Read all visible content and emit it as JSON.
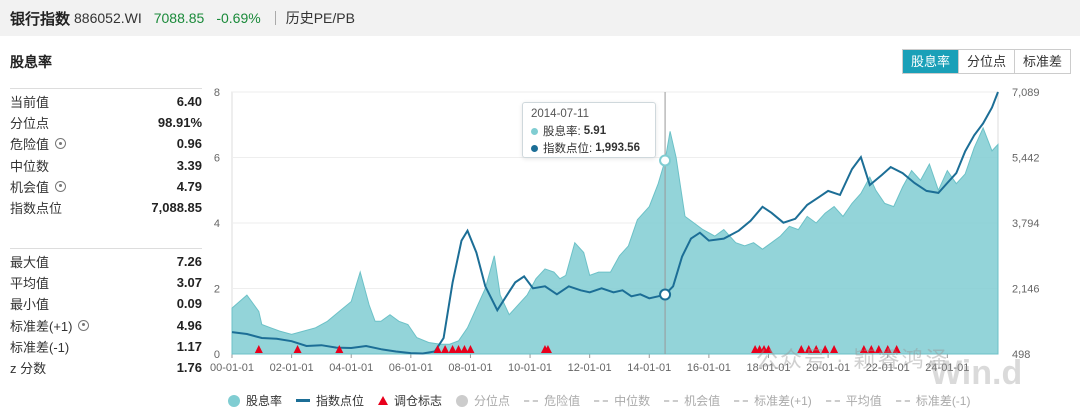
{
  "header": {
    "name": "银行指数",
    "code": "886052.WI",
    "price": "7088.85",
    "change": "-0.69%",
    "history_label": "历史PE/PB"
  },
  "section_title": "股息率",
  "tabs": [
    {
      "label": "股息率",
      "active": true
    },
    {
      "label": "分位点",
      "active": false
    },
    {
      "label": "标准差",
      "active": false
    }
  ],
  "stats_top": [
    {
      "label": "当前值",
      "value": "6.40",
      "gear": false
    },
    {
      "label": "分位点",
      "value": "98.91%",
      "gear": false
    },
    {
      "label": "危险值",
      "value": "0.96",
      "gear": true
    },
    {
      "label": "中位数",
      "value": "3.39",
      "gear": false
    },
    {
      "label": "机会值",
      "value": "4.79",
      "gear": true
    },
    {
      "label": "指数点位",
      "value": "7,088.85",
      "gear": false
    }
  ],
  "stats_bottom": [
    {
      "label": "最大值",
      "value": "7.26",
      "gear": false
    },
    {
      "label": "平均值",
      "value": "3.07",
      "gear": false
    },
    {
      "label": "最小值",
      "value": "0.09",
      "gear": false
    },
    {
      "label": "标准差(+1)",
      "value": "4.96",
      "gear": true
    },
    {
      "label": "标准差(-1)",
      "value": "1.17",
      "gear": false
    },
    {
      "label": "z 分数",
      "value": "1.76",
      "gear": false
    }
  ],
  "tooltip": {
    "date": "2014-07-11",
    "dividend_label": "股息率:",
    "dividend_value": "5.91",
    "index_label": "指数点位:",
    "index_value": "1,993.56"
  },
  "legend": [
    {
      "label": "股息率",
      "kind": "dot",
      "color": "#80cdd2",
      "active": true
    },
    {
      "label": "指数点位",
      "kind": "line",
      "color": "#1c6e96",
      "active": true
    },
    {
      "label": "调仓标志",
      "kind": "tri",
      "color": "#e8001c",
      "active": true
    },
    {
      "label": "分位点",
      "kind": "dot",
      "color": "#cccccc",
      "active": false
    },
    {
      "label": "危险值",
      "kind": "dash",
      "color": "#cccccc",
      "active": false
    },
    {
      "label": "中位数",
      "kind": "dash",
      "color": "#cccccc",
      "active": false
    },
    {
      "label": "机会值",
      "kind": "dash",
      "color": "#cccccc",
      "active": false
    },
    {
      "label": "标准差(+1)",
      "kind": "dash",
      "color": "#cccccc",
      "active": false
    },
    {
      "label": "平均值",
      "kind": "dash",
      "color": "#cccccc",
      "active": false
    },
    {
      "label": "标准差(-1)",
      "kind": "dash",
      "color": "#cccccc",
      "active": false
    }
  ],
  "watermark": "公众号 · 颖睿鸿泽",
  "watermark2": "Win.d",
  "colors": {
    "area": "#80cdd2",
    "index_line": "#1c6e96",
    "marker": "#e8001c",
    "tab_active": "#1aa0b8",
    "positive": "#1a8a3a"
  },
  "chart_data": {
    "type": "area",
    "x_tick_labels": [
      "00-01-01",
      "02-01-01",
      "04-01-01",
      "06-01-01",
      "08-01-01",
      "10-01-01",
      "12-01-01",
      "14-01-01",
      "16-01-01",
      "18-01-01",
      "20-01-01",
      "22-01-01",
      "24-01-01"
    ],
    "x_tick_years": [
      2000,
      2002,
      2004,
      2006,
      2008,
      2010,
      2012,
      2014,
      2016,
      2018,
      2020,
      2022,
      2024
    ],
    "x_range": [
      2000.0,
      2025.7
    ],
    "y_left_ticks": [
      0,
      2,
      4,
      6,
      8
    ],
    "y_left_range": [
      0,
      8
    ],
    "y_right_ticks": [
      "498",
      "2,146",
      "3,794",
      "5,442",
      "7,089"
    ],
    "y_right_range": [
      498,
      7089
    ],
    "grid": true,
    "series": [
      {
        "name": "股息率",
        "axis": "left",
        "x": [
          2000.0,
          2000.5,
          2000.9,
          2001.0,
          2001.3,
          2001.6,
          2002.0,
          2002.4,
          2002.8,
          2003.2,
          2003.6,
          2004.0,
          2004.3,
          2004.6,
          2004.8,
          2005.0,
          2005.3,
          2005.6,
          2005.9,
          2006.2,
          2006.6,
          2007.0,
          2007.3,
          2007.6,
          2007.9,
          2008.2,
          2008.5,
          2008.8,
          2009.0,
          2009.3,
          2009.6,
          2009.9,
          2010.2,
          2010.5,
          2010.8,
          2011.0,
          2011.2,
          2011.5,
          2011.8,
          2012.0,
          2012.3,
          2012.7,
          2013.0,
          2013.3,
          2013.6,
          2014.0,
          2014.3,
          2014.53,
          2014.7,
          2014.9,
          2015.2,
          2015.5,
          2015.8,
          2016.2,
          2016.5,
          2016.9,
          2017.2,
          2017.5,
          2017.8,
          2018.1,
          2018.4,
          2018.7,
          2019.0,
          2019.3,
          2019.6,
          2019.9,
          2020.2,
          2020.5,
          2020.8,
          2021.1,
          2021.4,
          2021.6,
          2021.9,
          2022.2,
          2022.5,
          2022.8,
          2023.1,
          2023.4,
          2023.7,
          2024.0,
          2024.3,
          2024.6,
          2024.9,
          2025.2,
          2025.5,
          2025.7
        ],
        "values": [
          1.4,
          1.8,
          1.3,
          0.9,
          0.8,
          0.7,
          0.6,
          0.7,
          0.8,
          1.0,
          1.3,
          1.6,
          2.5,
          1.5,
          1.0,
          1.0,
          1.2,
          1.0,
          0.9,
          0.5,
          0.35,
          0.3,
          0.3,
          0.4,
          0.8,
          1.4,
          2.0,
          3.0,
          1.8,
          1.2,
          1.5,
          1.8,
          2.3,
          2.6,
          2.5,
          2.3,
          2.4,
          3.4,
          3.1,
          2.4,
          2.5,
          2.5,
          3.0,
          3.3,
          4.1,
          4.5,
          5.2,
          5.91,
          6.8,
          6.0,
          4.2,
          4.0,
          3.8,
          3.6,
          3.8,
          3.4,
          3.3,
          3.4,
          3.2,
          3.4,
          3.6,
          3.9,
          3.8,
          4.2,
          4.0,
          4.3,
          4.5,
          4.2,
          4.6,
          4.9,
          5.4,
          5.0,
          4.6,
          4.5,
          5.1,
          5.6,
          5.3,
          5.8,
          5.0,
          5.6,
          5.2,
          5.5,
          6.3,
          6.9,
          6.2,
          6.4
        ]
      },
      {
        "name": "指数点位",
        "axis": "right",
        "x": [
          2000.0,
          2000.5,
          2001.0,
          2001.5,
          2002.0,
          2002.5,
          2003.0,
          2003.5,
          2004.0,
          2004.5,
          2005.0,
          2005.5,
          2006.0,
          2006.4,
          2006.8,
          2007.1,
          2007.4,
          2007.7,
          2007.9,
          2008.2,
          2008.5,
          2008.9,
          2009.2,
          2009.5,
          2009.8,
          2010.1,
          2010.5,
          2010.9,
          2011.3,
          2011.7,
          2012.0,
          2012.4,
          2012.8,
          2013.1,
          2013.4,
          2013.7,
          2014.0,
          2014.3,
          2014.53,
          2014.8,
          2015.1,
          2015.4,
          2015.7,
          2016.0,
          2016.5,
          2017.0,
          2017.4,
          2017.8,
          2018.1,
          2018.5,
          2018.9,
          2019.3,
          2019.7,
          2020.0,
          2020.4,
          2020.8,
          2021.1,
          2021.4,
          2021.8,
          2022.1,
          2022.5,
          2022.9,
          2023.3,
          2023.7,
          2024.0,
          2024.3,
          2024.6,
          2024.9,
          2025.2,
          2025.5,
          2025.7
        ],
        "values": [
          1050,
          1000,
          900,
          880,
          820,
          700,
          720,
          660,
          650,
          700,
          620,
          560,
          520,
          510,
          560,
          900,
          2300,
          3350,
          3600,
          3050,
          2200,
          1600,
          1950,
          2300,
          2450,
          2150,
          2200,
          2000,
          2200,
          2100,
          2050,
          2150,
          2050,
          2100,
          1950,
          2000,
          1900,
          1950,
          1993.56,
          2200,
          2950,
          3400,
          3550,
          3350,
          3400,
          3600,
          3850,
          4200,
          4050,
          3800,
          3900,
          4250,
          4450,
          4600,
          4500,
          5150,
          5450,
          4750,
          5000,
          5200,
          5050,
          4800,
          4600,
          4550,
          4800,
          5050,
          5600,
          6000,
          6300,
          6700,
          7088.85
        ]
      }
    ],
    "markers": {
      "name": "调仓标志",
      "x": [
        2000.9,
        2002.2,
        2003.6,
        2006.9,
        2007.15,
        2007.4,
        2007.6,
        2007.8,
        2008.0,
        2010.5,
        2010.6,
        2017.55,
        2017.7,
        2017.85,
        2018.0,
        2019.1,
        2019.35,
        2019.6,
        2019.9,
        2020.2,
        2021.2,
        2021.45,
        2021.7,
        2022.0,
        2022.3
      ],
      "y": 0
    }
  }
}
